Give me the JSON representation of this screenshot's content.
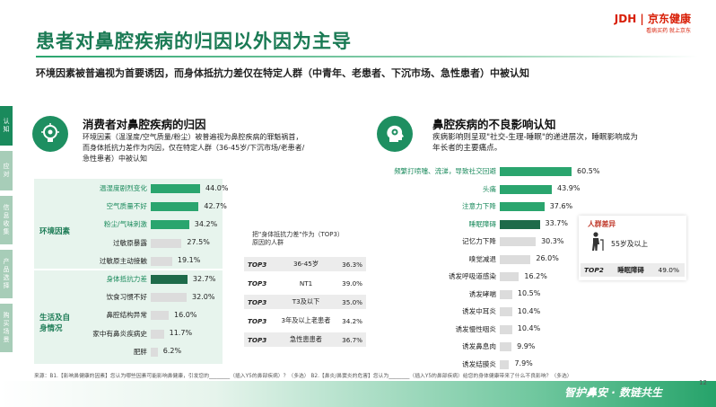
{
  "sidebar": [
    {
      "label": "认\n知",
      "color": "#1a8a5c"
    },
    {
      "label": "应\n对",
      "color": "#a7cdb8"
    },
    {
      "label": "信\n息\n收\n集",
      "color": "#a7cdb8"
    },
    {
      "label": "产\n品\n选\n择",
      "color": "#a7cdb8"
    },
    {
      "label": "购\n买\n场\n景",
      "color": "#a7cdb8"
    }
  ],
  "brand": {
    "logo": "JDH | 京东健康",
    "tagline": "看病买药  就上京东"
  },
  "header": {
    "title": "患者对鼻腔疾病的归因以外因为主导",
    "subtitle": "环境因素被普遍视为首要诱因，而身体抵抗力差仅在特定人群（中青年、老患者、下沉市场、急性患者）中被认知"
  },
  "left_panel": {
    "title": "消费者对鼻腔疾病的归因",
    "icon": "lightbulb-gear-icon",
    "desc": "环境因素（温湿度/空气质量/粉尘）被普遍视为鼻腔疾病的罪魁祸首，\n而身体抵抗力差作为内因，仅在特定人群（36-45岁/下沉市场/老患者/\n急性患者）中被认知",
    "group_env": "环境因素",
    "group_life": "生活及自\n身情况"
  },
  "table": {
    "title": "把\"身体抵抗力差\"作为（TOP3）\n原因的人群",
    "rows": [
      {
        "tag": "TOP3",
        "group": "36-45岁",
        "value": "36.3%"
      },
      {
        "tag": "TOP3",
        "group": "NT1",
        "value": "39.0%"
      },
      {
        "tag": "TOP3",
        "group": "T3及以下",
        "value": "35.0%"
      },
      {
        "tag": "TOP3",
        "group": "3年及以上老患者",
        "value": "34.2%"
      },
      {
        "tag": "TOP3",
        "group": "急性患患者",
        "value": "36.7%"
      }
    ]
  },
  "right_panel": {
    "title": "鼻腔疾病的不良影响认知",
    "icon": "head-gear-icon",
    "desc": "疾病影响则呈现\"社交-生理-睡眠\"的递进层次，睡眠影响成为\n年长者的主要痛点。"
  },
  "sidebox": {
    "title": "人群差异",
    "icon": "elderly-person-icon",
    "group": "55岁及以上",
    "tag": "TOP2",
    "item": "睡眠障碍",
    "value": "49.0%"
  },
  "chart_data": [
    {
      "type": "bar",
      "orientation": "horizontal",
      "title": "消费者对鼻腔疾病的归因",
      "categories": [
        "温湿度剧烈变化",
        "空气质量不好",
        "粉尘/气味刺激",
        "过敏原暴露",
        "过敏原主动接触",
        "身体抵抗力差",
        "饮食习惯不好",
        "鼻腔结构异常",
        "家中有鼻炎疾病史",
        "肥胖"
      ],
      "values": [
        44.0,
        42.7,
        34.2,
        27.5,
        19.1,
        32.7,
        32.0,
        16.0,
        11.7,
        6.2
      ],
      "value_labels": [
        "44.0%",
        "42.7%",
        "34.2%",
        "27.5%",
        "19.1%",
        "32.7%",
        "32.0%",
        "16.0%",
        "11.7%",
        "6.2%"
      ],
      "groups": [
        {
          "name": "环境因素",
          "categories": [
            "温湿度剧烈变化",
            "空气质量不好",
            "粉尘/气味刺激",
            "过敏原暴露",
            "过敏原主动接触"
          ]
        },
        {
          "name": "生活及自身情况",
          "categories": [
            "身体抵抗力差",
            "饮食习惯不好",
            "鼻腔结构异常",
            "家中有鼻炎疾病史",
            "肥胖"
          ]
        }
      ],
      "highlighted": [
        "温湿度剧烈变化",
        "空气质量不好",
        "粉尘/气味刺激",
        "身体抵抗力差"
      ],
      "colors": {
        "highlight": "#2aa56e",
        "normal": "#dcdcdc",
        "dark": "#1e6b4a"
      },
      "unit": "%"
    },
    {
      "type": "bar",
      "orientation": "horizontal",
      "title": "鼻腔疾病的不良影响认知",
      "categories": [
        "频繁打喷嚏、流涕，导致社交回避",
        "头痛",
        "注意力下降",
        "睡眠障碍",
        "记忆力下降",
        "嗅觉减退",
        "诱发呼吸道感染",
        "诱发哮喘",
        "诱发中耳炎",
        "诱发慢性咽炎",
        "诱发鼻息肉",
        "诱发结膜炎"
      ],
      "values": [
        60.5,
        43.9,
        37.6,
        33.7,
        30.3,
        26.0,
        16.2,
        10.5,
        10.4,
        10.4,
        9.9,
        7.9
      ],
      "value_labels": [
        "60.5%",
        "43.9%",
        "37.6%",
        "33.7%",
        "30.3%",
        "26.0%",
        "16.2%",
        "10.5%",
        "10.4%",
        "10.4%",
        "9.9%",
        "7.9%"
      ],
      "highlighted": [
        "频繁打喷嚏、流涕，导致社交回避",
        "头痛",
        "注意力下降",
        "睡眠障碍"
      ],
      "colors": {
        "highlight": "#2aa56e",
        "normal": "#dcdcdc",
        "dark": "#1e6b4a"
      },
      "unit": "%"
    }
  ],
  "footer": {
    "note": "来源：B1.【影响鼻健康的因素】您认为哪些因素可能影响鼻健康，引发您的________（插入Y5的鼻部疾病）？（多选） B2.【鼻炎/鼻窦炎的危害】您认为________（插入Y5的鼻部疾病）给您的身体健康带来了什么不良影响？（多选）",
    "slogan": "智护鼻安 · 数链共生",
    "page": "12"
  }
}
